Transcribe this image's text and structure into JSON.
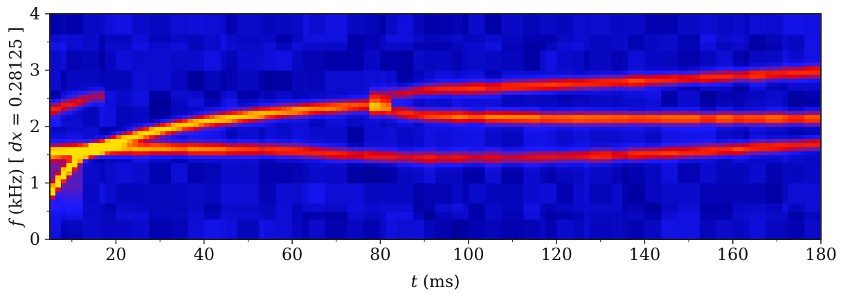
{
  "chart_data": {
    "type": "heatmap",
    "xlabel": {
      "var": "t",
      "unit": " (ms)"
    },
    "ylabel": {
      "var": "f",
      "unit": " (kHz)",
      "annotation_open": "  [ ",
      "annotation_var": "dx",
      "annotation_rest": " = 0.28125 ]"
    },
    "xlim": [
      5,
      180
    ],
    "ylim": [
      0,
      4
    ],
    "x_ticks": [
      20,
      40,
      60,
      80,
      100,
      120,
      140,
      160,
      180
    ],
    "y_ticks": [
      0,
      1,
      2,
      3,
      4
    ],
    "colormap": [
      "#00002a",
      "#0000a8",
      "#1a1aff",
      "#6a1aa8",
      "#d8001a",
      "#ff2a00",
      "#ff9a00",
      "#ffe000"
    ],
    "background_color": "#0000b0",
    "ridges": [
      {
        "f_points": [
          [
            5,
            0.8
          ],
          [
            8,
            1.15
          ],
          [
            12,
            1.5
          ],
          [
            20,
            1.75
          ],
          [
            30,
            1.95
          ],
          [
            40,
            2.1
          ],
          [
            55,
            2.25
          ],
          [
            65,
            2.32
          ],
          [
            75,
            2.38
          ],
          [
            80,
            2.4
          ]
        ],
        "intensity": [
          1.0,
          0.95,
          0.92,
          0.85,
          0.82,
          0.78,
          0.7,
          0.66,
          0.58,
          0.45
        ]
      },
      {
        "f_points": [
          [
            5,
            1.55
          ],
          [
            15,
            1.6
          ],
          [
            30,
            1.62
          ],
          [
            40,
            1.6
          ],
          [
            50,
            1.6
          ],
          [
            60,
            1.58
          ],
          [
            70,
            1.52
          ],
          [
            80,
            1.48
          ],
          [
            90,
            1.45
          ],
          [
            100,
            1.45
          ],
          [
            110,
            1.45
          ],
          [
            120,
            1.47
          ],
          [
            135,
            1.5
          ],
          [
            150,
            1.55
          ],
          [
            165,
            1.63
          ],
          [
            180,
            1.7
          ]
        ],
        "intensity": [
          0.75,
          0.72,
          0.7,
          0.62,
          0.55,
          0.52,
          0.48,
          0.45,
          0.42,
          0.4,
          0.38,
          0.46,
          0.48,
          0.5,
          0.52,
          0.52
        ]
      },
      {
        "f_points": [
          [
            80,
            2.3
          ],
          [
            90,
            2.2
          ],
          [
            100,
            2.18
          ],
          [
            120,
            2.15
          ],
          [
            140,
            2.15
          ],
          [
            160,
            2.15
          ],
          [
            180,
            2.15
          ]
        ],
        "intensity": [
          0.4,
          0.55,
          0.6,
          0.62,
          0.62,
          0.62,
          0.6
        ]
      },
      {
        "f_points": [
          [
            80,
            2.55
          ],
          [
            90,
            2.65
          ],
          [
            100,
            2.68
          ],
          [
            120,
            2.75
          ],
          [
            140,
            2.82
          ],
          [
            160,
            2.9
          ],
          [
            180,
            2.98
          ]
        ],
        "intensity": [
          0.35,
          0.45,
          0.5,
          0.52,
          0.52,
          0.52,
          0.5
        ]
      },
      {
        "f_points": [
          [
            5,
            2.3
          ],
          [
            10,
            2.4
          ],
          [
            15,
            2.55
          ]
        ],
        "intensity": [
          0.45,
          0.4,
          0.3
        ]
      }
    ]
  }
}
